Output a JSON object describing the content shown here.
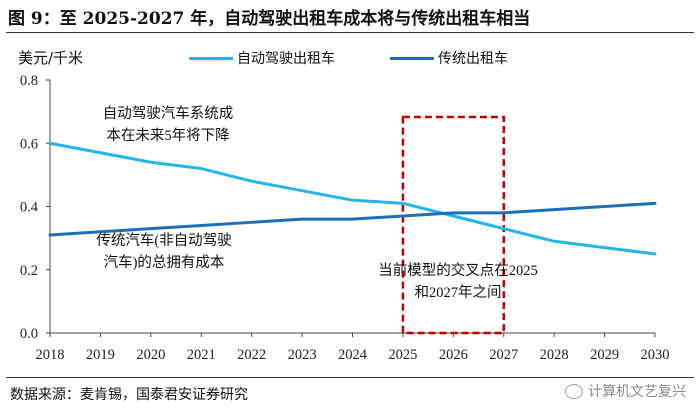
{
  "header": {
    "title": "图 9：至 2025-2027 年，自动驾驶出租车成本将与传统出租车相当"
  },
  "footer": {
    "source": "数据来源：麦肯锡，国泰君安证券研究",
    "watermark": "计算机文艺复兴",
    "watermark_icon": "wechat-icon"
  },
  "colors": {
    "autonomous": "#25b5ea",
    "traditional": "#1f6fb8",
    "highlight": "#c00000"
  },
  "chart_data": {
    "type": "line",
    "title": "图 9：至 2025-2027 年，自动驾驶出租车成本将与传统出租车相当",
    "ylabel": "美元/千米",
    "xlabel": "",
    "x": [
      2018,
      2019,
      2020,
      2021,
      2022,
      2023,
      2024,
      2025,
      2026,
      2027,
      2028,
      2029,
      2030
    ],
    "xticks": [
      "2018",
      "2019",
      "2020",
      "2021",
      "2022",
      "2023",
      "2024",
      "2025",
      "2026",
      "2027",
      "2028",
      "2029",
      "2030"
    ],
    "yticks": [
      "0.0",
      "0.2",
      "0.4",
      "0.6",
      "0.8"
    ],
    "ylim": [
      0,
      0.8
    ],
    "xlim": [
      2018,
      2030
    ],
    "series": [
      {
        "name": "自动驾驶出租车",
        "values": [
          0.6,
          0.57,
          0.54,
          0.52,
          0.48,
          0.45,
          0.42,
          0.41,
          0.37,
          0.33,
          0.29,
          0.27,
          0.25
        ]
      },
      {
        "name": "传统出租车",
        "values": [
          0.31,
          0.32,
          0.33,
          0.34,
          0.35,
          0.36,
          0.36,
          0.37,
          0.38,
          0.38,
          0.39,
          0.4,
          0.41
        ]
      }
    ],
    "highlight": {
      "x_range": [
        2025,
        2027
      ]
    },
    "legend_position": "top",
    "annotations": [
      {
        "lines": [
          "自动驾驶汽车系统成",
          "本在未来5年将下降"
        ]
      },
      {
        "lines": [
          "传统汽车(非自动驾驶",
          "汽车)的总拥有成本"
        ]
      },
      {
        "lines": [
          "当前模型的交叉点在2025",
          "和2027年之间"
        ]
      }
    ]
  }
}
